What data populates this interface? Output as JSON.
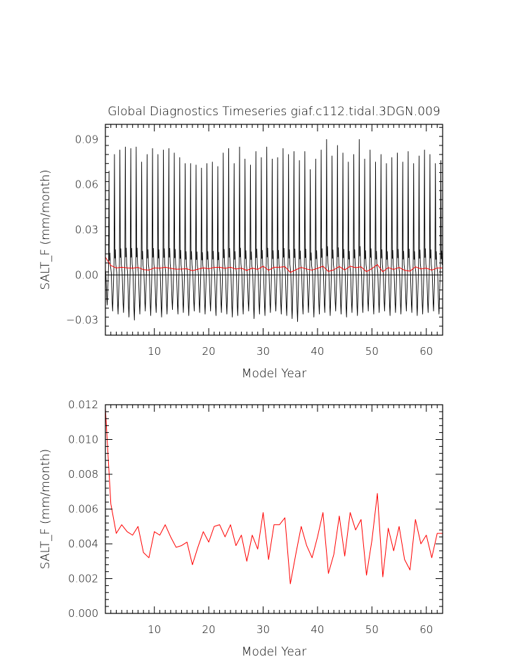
{
  "chart_data": [
    {
      "type": "line",
      "title": "Global Diagnostics Timeseries giaf.c112.tidal.3DGN.009",
      "xlabel": "Model Year",
      "ylabel": "SALT_F (mm/month)",
      "xlim": [
        1,
        63
      ],
      "ylim": [
        -0.04,
        0.1
      ],
      "x_ticks": [
        10,
        20,
        30,
        40,
        50,
        60
      ],
      "y_ticks": [
        -0.03,
        0.0,
        0.03,
        0.06,
        0.09
      ],
      "y_tick_labels": [
        "−0.03",
        "0.00",
        "0.03",
        "0.06",
        "0.09"
      ],
      "zero_line": true,
      "grid": false,
      "series": [
        {
          "kind": "monthly",
          "color": "#000000",
          "peaks": [
            0.069,
            0.08,
            0.083,
            0.085,
            0.084,
            0.085,
            0.075,
            0.08,
            0.084,
            0.08,
            0.083,
            0.084,
            0.081,
            0.078,
            0.074,
            0.074,
            0.073,
            0.071,
            0.074,
            0.075,
            0.072,
            0.081,
            0.084,
            0.074,
            0.085,
            0.077,
            0.073,
            0.082,
            0.078,
            0.085,
            0.077,
            0.078,
            0.084,
            0.08,
            0.082,
            0.076,
            0.082,
            0.07,
            0.077,
            0.083,
            0.09,
            0.079,
            0.086,
            0.081,
            0.075,
            0.08,
            0.09,
            0.077,
            0.083,
            0.075,
            0.08,
            0.074,
            0.078,
            0.081,
            0.075,
            0.082,
            0.074,
            0.079,
            0.083,
            0.08,
            0.074,
            0.076
          ],
          "troughs": [
            -0.02,
            -0.024,
            -0.026,
            -0.025,
            -0.028,
            -0.03,
            -0.026,
            -0.024,
            -0.027,
            -0.025,
            -0.028,
            -0.026,
            -0.023,
            -0.026,
            -0.025,
            -0.027,
            -0.024,
            -0.025,
            -0.026,
            -0.024,
            -0.027,
            -0.025,
            -0.026,
            -0.028,
            -0.027,
            -0.026,
            -0.024,
            -0.029,
            -0.026,
            -0.027,
            -0.025,
            -0.024,
            -0.026,
            -0.027,
            -0.029,
            -0.031,
            -0.026,
            -0.025,
            -0.028,
            -0.026,
            -0.025,
            -0.027,
            -0.024,
            -0.026,
            -0.028,
            -0.025,
            -0.027,
            -0.025,
            -0.024,
            -0.026,
            -0.025,
            -0.024,
            -0.027,
            -0.025,
            -0.026,
            -0.024,
            -0.025,
            -0.027,
            -0.026,
            -0.025,
            -0.024,
            -0.026
          ]
        },
        {
          "kind": "annual",
          "color": "#ff0000",
          "x": [
            1,
            2,
            3,
            4,
            5,
            6,
            7,
            8,
            9,
            10,
            11,
            12,
            13,
            14,
            15,
            16,
            17,
            18,
            19,
            20,
            21,
            22,
            23,
            24,
            25,
            26,
            27,
            28,
            29,
            30,
            31,
            32,
            33,
            34,
            35,
            36,
            37,
            38,
            39,
            40,
            41,
            42,
            43,
            44,
            45,
            46,
            47,
            48,
            49,
            50,
            51,
            52,
            53,
            54,
            55,
            56,
            57,
            58,
            59,
            60,
            61,
            62,
            63
          ],
          "values": [
            0.0118,
            0.0063,
            0.0046,
            0.0051,
            0.0047,
            0.0045,
            0.005,
            0.0035,
            0.0032,
            0.0047,
            0.0045,
            0.0051,
            0.0044,
            0.0038,
            0.0039,
            0.0041,
            0.0028,
            0.0038,
            0.0047,
            0.0041,
            0.005,
            0.0051,
            0.0044,
            0.0051,
            0.0039,
            0.0045,
            0.003,
            0.0045,
            0.0037,
            0.0058,
            0.0031,
            0.0051,
            0.0051,
            0.0055,
            0.0017,
            0.0034,
            0.005,
            0.0039,
            0.0032,
            0.0044,
            0.0058,
            0.0023,
            0.0034,
            0.0056,
            0.0033,
            0.0058,
            0.0048,
            0.0054,
            0.0022,
            0.0042,
            0.0069,
            0.0021,
            0.0049,
            0.0036,
            0.005,
            0.0031,
            0.0025,
            0.0054,
            0.004,
            0.0045,
            0.0032,
            0.0046,
            0.0046
          ]
        }
      ]
    },
    {
      "type": "line",
      "title": "",
      "xlabel": "Model Year",
      "ylabel": "SALT_F (mm/month)",
      "xlim": [
        1,
        63
      ],
      "ylim": [
        0.0,
        0.012
      ],
      "x_ticks": [
        10,
        20,
        30,
        40,
        50,
        60
      ],
      "y_ticks": [
        0.0,
        0.002,
        0.004,
        0.006,
        0.008,
        0.01,
        0.012
      ],
      "y_tick_labels": [
        "0.000",
        "0.002",
        "0.004",
        "0.006",
        "0.008",
        "0.010",
        "0.012"
      ],
      "zero_line": false,
      "grid": false,
      "series": [
        {
          "kind": "annual",
          "color": "#ff0000",
          "x": [
            1,
            2,
            3,
            4,
            5,
            6,
            7,
            8,
            9,
            10,
            11,
            12,
            13,
            14,
            15,
            16,
            17,
            18,
            19,
            20,
            21,
            22,
            23,
            24,
            25,
            26,
            27,
            28,
            29,
            30,
            31,
            32,
            33,
            34,
            35,
            36,
            37,
            38,
            39,
            40,
            41,
            42,
            43,
            44,
            45,
            46,
            47,
            48,
            49,
            50,
            51,
            52,
            53,
            54,
            55,
            56,
            57,
            58,
            59,
            60,
            61,
            62,
            63
          ],
          "values": [
            0.0118,
            0.0063,
            0.0046,
            0.0051,
            0.0047,
            0.0045,
            0.005,
            0.0035,
            0.0032,
            0.0047,
            0.0045,
            0.0051,
            0.0044,
            0.0038,
            0.0039,
            0.0041,
            0.0028,
            0.0038,
            0.0047,
            0.0041,
            0.005,
            0.0051,
            0.0044,
            0.0051,
            0.0039,
            0.0045,
            0.003,
            0.0045,
            0.0037,
            0.0058,
            0.0031,
            0.0051,
            0.0051,
            0.0055,
            0.0017,
            0.0034,
            0.005,
            0.0039,
            0.0032,
            0.0044,
            0.0058,
            0.0023,
            0.0034,
            0.0056,
            0.0033,
            0.0058,
            0.0048,
            0.0054,
            0.0022,
            0.0042,
            0.0069,
            0.0021,
            0.0049,
            0.0036,
            0.005,
            0.0031,
            0.0025,
            0.0054,
            0.004,
            0.0045,
            0.0032,
            0.0046,
            0.0046
          ]
        }
      ]
    }
  ]
}
